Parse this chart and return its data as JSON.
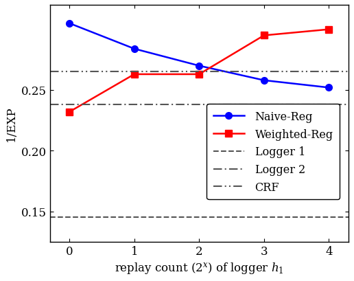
{
  "x": [
    0,
    1,
    2,
    3,
    4
  ],
  "naive_reg": [
    0.305,
    0.284,
    0.27,
    0.258,
    0.252
  ],
  "weighted_reg": [
    0.232,
    0.263,
    0.263,
    0.295,
    0.3
  ],
  "logger1": 0.145,
  "logger2": 0.238,
  "crf": 0.265,
  "naive_color": "#0000ff",
  "weighted_color": "#ff0000",
  "hline_color": "#555555",
  "xlabel": "replay count ($2^x$) of logger $h_1$",
  "ylabel": "1/EXP",
  "ylim": [
    0.125,
    0.32
  ],
  "yticks": [
    0.15,
    0.2,
    0.25
  ],
  "legend_labels": [
    "Naive-Reg",
    "Weighted-Reg",
    "Logger 1",
    "Logger 2",
    "CRF"
  ]
}
